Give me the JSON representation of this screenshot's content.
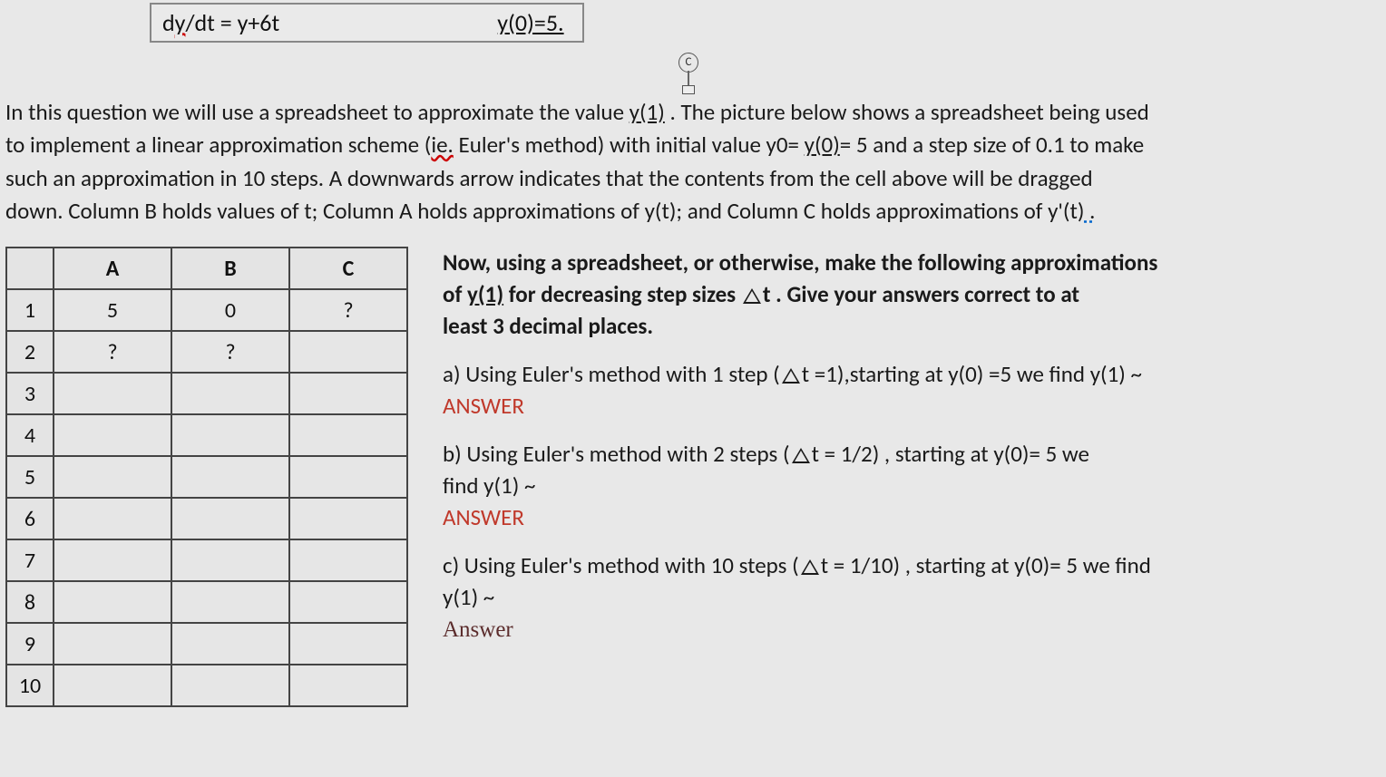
{
  "equation": {
    "lhs_prefix": "d",
    "lhs_underlined": "y",
    "lhs_rest": "/dt = y+6t",
    "rhs": "y(0)=5.",
    "cursor_glyph": "↓"
  },
  "button_c": "C",
  "paragraph": {
    "l1a": "In this question we will use a spreadsheet to approximate the value ",
    "l1b": "y(1)",
    "l1c": " . The picture below shows a spreadsheet being used",
    "l2a": "to implement a linear approximation scheme (",
    "l2b": "ie.",
    "l2c": " Euler's method) with initial value y0= ",
    "l2d": "y(0)",
    "l2e": "= 5 and a step size of 0.1 to make",
    "l3": "such an approximation in 10 steps. A downwards arrow indicates that the contents from the cell above will be dragged",
    "l4a": "down.  Column B holds values of t; Column A holds approximations of y(t); and Column C holds approximations of y'(t)",
    "l4b": " ."
  },
  "table": {
    "headers": [
      "A",
      "B",
      "C"
    ],
    "rows": [
      {
        "n": "1",
        "a": "5",
        "b": "0",
        "c": "?"
      },
      {
        "n": "2",
        "a": "?",
        "b": "?",
        "c": ""
      },
      {
        "n": "3",
        "a": "",
        "b": "",
        "c": ""
      },
      {
        "n": "4",
        "a": "",
        "b": "",
        "c": ""
      },
      {
        "n": "5",
        "a": "",
        "b": "",
        "c": ""
      },
      {
        "n": "6",
        "a": "",
        "b": "",
        "c": ""
      },
      {
        "n": "7",
        "a": "",
        "b": "",
        "c": ""
      },
      {
        "n": "8",
        "a": "",
        "b": "",
        "c": ""
      },
      {
        "n": "9",
        "a": "",
        "b": "",
        "c": ""
      },
      {
        "n": "10",
        "a": "",
        "b": "",
        "c": ""
      }
    ]
  },
  "right": {
    "intro1": "Now, using a spreadsheet, or otherwise, make the following approximations",
    "intro2a": "of ",
    "intro2b": "y(1)",
    "intro2c": " for decreasing step sizes ",
    "intro2d": "t . Give your answers correct to at",
    "intro3": "least 3 decimal places.",
    "a1": "a) Using Euler's method with 1 step (",
    "a2": "t =1),starting at y(0) =5 we find y(1) ~",
    "a_ans": "ANSWER",
    "b1": "b)   Using Euler's method with 2 steps (",
    "b2": "t = 1/2) , starting at y(0)= 5 we",
    "b3": "find y(1) ~",
    "b_ans": "ANSWER",
    "c1": "c)  Using Euler's method with 10 steps (",
    "c2": "t = 1/10) , starting at y(0)= 5  we find",
    "c3": "y(1) ~",
    "c_ans": "Answer"
  }
}
